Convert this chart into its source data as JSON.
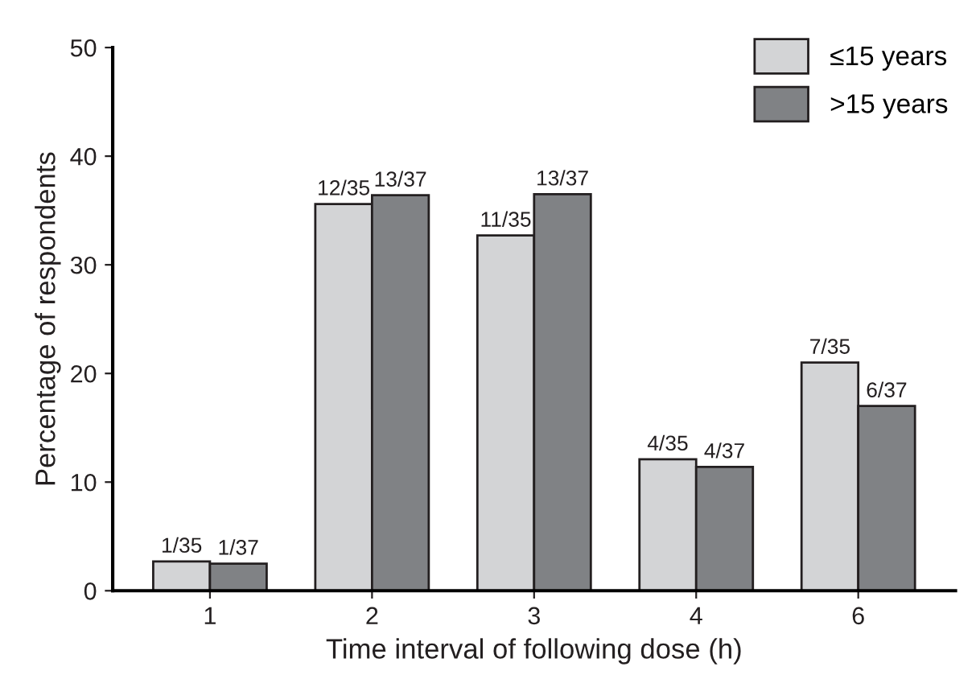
{
  "chart_data": {
    "type": "bar",
    "xlabel": "Time interval of following dose (h)",
    "ylabel": "Percentage of respondents",
    "categories": [
      "1",
      "2",
      "3",
      "4",
      "6"
    ],
    "series": [
      {
        "name": "≤15 years",
        "color": "#d3d4d6",
        "values": [
          2.7,
          35.6,
          32.7,
          12.1,
          21.0
        ],
        "value_labels": [
          "1/35",
          "12/35",
          "11/35",
          "4/35",
          "7/35"
        ]
      },
      {
        "name": ">15 years",
        "color": "#808285",
        "values": [
          2.5,
          36.4,
          36.5,
          11.4,
          17.0
        ],
        "value_labels": [
          "1/37",
          "13/37",
          "13/37",
          "4/37",
          "6/37"
        ]
      }
    ],
    "ylim": [
      0,
      50
    ],
    "yticks": [
      0,
      10,
      20,
      30,
      40,
      50
    ],
    "grid": false,
    "legend": "top right"
  }
}
